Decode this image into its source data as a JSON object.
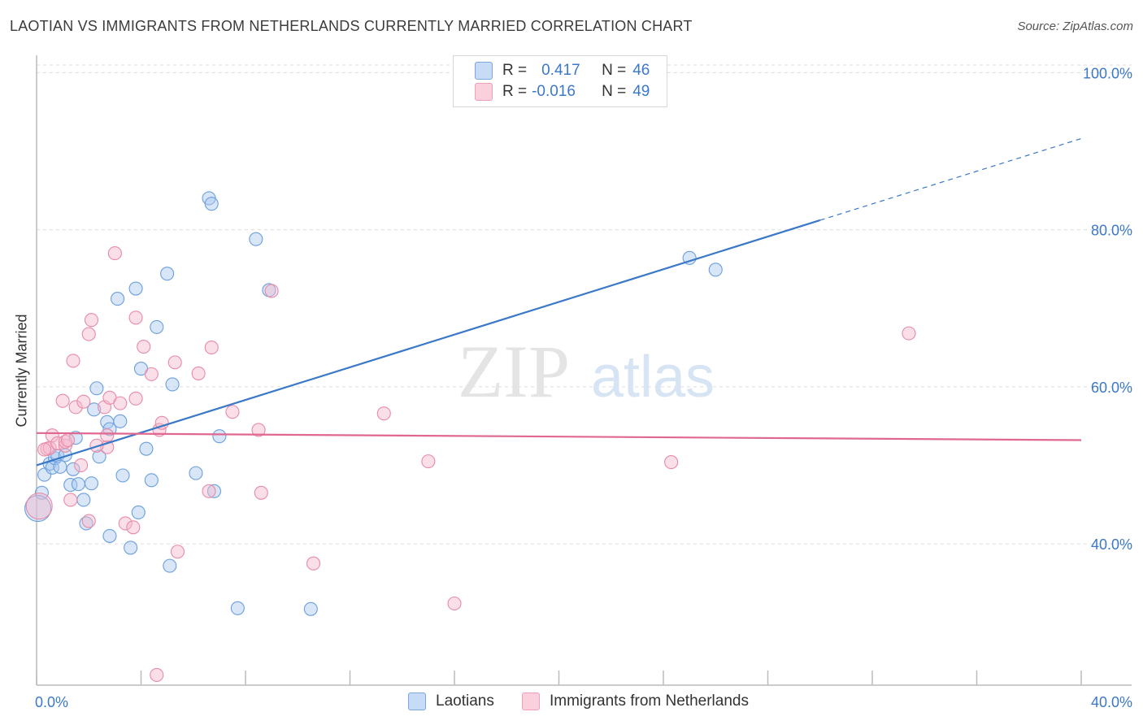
{
  "header": {
    "title": "LAOTIAN VS IMMIGRANTS FROM NETHERLANDS CURRENTLY MARRIED CORRELATION CHART",
    "source": "Source: ZipAtlas.com"
  },
  "watermark": {
    "zip": "ZIP",
    "atlas": "atlas"
  },
  "stats": [
    {
      "r_label": "R =",
      "r_value": "0.417",
      "n_label": "N =",
      "n_value": "46",
      "color": "#a9c8f0"
    },
    {
      "r_label": "R =",
      "r_value": "-0.016",
      "n_label": "N =",
      "n_value": "49",
      "color": "#f5b8cb"
    }
  ],
  "legend": {
    "items": [
      {
        "label": "Laotians",
        "color": "#a9c8f0"
      },
      {
        "label": "Immigrants from Netherlands",
        "color": "#f5b8cb"
      }
    ]
  },
  "chart_data": {
    "type": "scatter",
    "title": "LAOTIAN VS IMMIGRANTS FROM NETHERLANDS CURRENTLY MARRIED CORRELATION CHART",
    "xlabel": "",
    "ylabel": "Currently Married",
    "xlim": [
      0,
      40
    ],
    "ylim": [
      22,
      102
    ],
    "x_tick_labels": [
      {
        "value": 0,
        "label": "0.0%"
      },
      {
        "value": 40,
        "label": "40.0%"
      }
    ],
    "y_tick_labels": [
      {
        "value": 100,
        "label": "100.0%"
      },
      {
        "value": 80,
        "label": "80.0%"
      },
      {
        "value": 60,
        "label": "60.0%"
      },
      {
        "value": 40,
        "label": "40.0%"
      }
    ],
    "y_grid": [
      100,
      80,
      60,
      40
    ],
    "x_ticks": [
      0,
      4,
      8,
      12,
      16,
      20,
      24,
      28,
      32,
      36,
      40
    ],
    "grid": true,
    "series": [
      {
        "name": "Laotians",
        "color": "#6a9fdc",
        "fill": "#a9c8f0",
        "trend": {
          "x0": 0,
          "y0": 50.0,
          "x1": 30.0,
          "y1": 81.2,
          "dash_to_x": 40,
          "dash_to_y": 91.6,
          "color": "#3a78c8"
        },
        "points": [
          [
            0.2,
            46.5
          ],
          [
            0.3,
            48.8
          ],
          [
            0.5,
            50.2
          ],
          [
            0.6,
            49.7
          ],
          [
            0.7,
            50.9
          ],
          [
            0.8,
            51.2
          ],
          [
            0.9,
            49.8
          ],
          [
            1.1,
            51.3
          ],
          [
            1.3,
            47.5
          ],
          [
            1.4,
            49.5
          ],
          [
            1.5,
            53.5
          ],
          [
            1.6,
            47.6
          ],
          [
            1.8,
            45.6
          ],
          [
            1.9,
            42.6
          ],
          [
            2.1,
            47.7
          ],
          [
            2.2,
            57.1
          ],
          [
            2.3,
            59.8
          ],
          [
            2.4,
            51.1
          ],
          [
            2.7,
            55.5
          ],
          [
            2.8,
            54.6
          ],
          [
            2.8,
            41.0
          ],
          [
            3.1,
            71.2
          ],
          [
            3.2,
            55.6
          ],
          [
            3.3,
            48.7
          ],
          [
            3.6,
            39.5
          ],
          [
            3.8,
            72.5
          ],
          [
            3.9,
            44.0
          ],
          [
            4.0,
            62.3
          ],
          [
            4.2,
            52.1
          ],
          [
            4.4,
            48.1
          ],
          [
            4.6,
            67.6
          ],
          [
            5.0,
            74.4
          ],
          [
            5.1,
            37.2
          ],
          [
            5.2,
            60.3
          ],
          [
            6.1,
            49.0
          ],
          [
            6.6,
            84.0
          ],
          [
            6.7,
            83.3
          ],
          [
            6.8,
            46.7
          ],
          [
            7.0,
            53.7
          ],
          [
            7.7,
            31.8
          ],
          [
            8.4,
            78.8
          ],
          [
            8.9,
            72.3
          ],
          [
            10.5,
            31.7
          ],
          [
            25.0,
            76.4
          ],
          [
            26.0,
            74.9
          ],
          [
            0.05,
            44.5
          ]
        ]
      },
      {
        "name": "Immigrants from Netherlands",
        "color": "#e88aa8",
        "fill": "#f5b8cb",
        "trend": {
          "x0": 0,
          "y0": 54.1,
          "x1": 40,
          "y1": 53.2,
          "color": "#e06890"
        },
        "points": [
          [
            0.1,
            44.8
          ],
          [
            0.4,
            52.1
          ],
          [
            0.5,
            52.2
          ],
          [
            0.6,
            53.8
          ],
          [
            0.8,
            52.8
          ],
          [
            1.0,
            58.2
          ],
          [
            1.1,
            52.5
          ],
          [
            1.1,
            53.0
          ],
          [
            1.3,
            45.6
          ],
          [
            1.4,
            63.3
          ],
          [
            1.5,
            57.4
          ],
          [
            1.7,
            50.0
          ],
          [
            1.8,
            58.1
          ],
          [
            2.0,
            42.9
          ],
          [
            2.0,
            66.7
          ],
          [
            2.1,
            68.5
          ],
          [
            2.6,
            57.4
          ],
          [
            2.7,
            52.3
          ],
          [
            2.7,
            53.8
          ],
          [
            2.8,
            58.6
          ],
          [
            3.0,
            77.0
          ],
          [
            3.2,
            57.9
          ],
          [
            3.4,
            42.6
          ],
          [
            3.7,
            42.1
          ],
          [
            3.8,
            68.8
          ],
          [
            3.8,
            58.5
          ],
          [
            4.1,
            65.1
          ],
          [
            4.4,
            61.6
          ],
          [
            4.7,
            54.5
          ],
          [
            4.8,
            55.4
          ],
          [
            5.3,
            63.1
          ],
          [
            5.4,
            39.0
          ],
          [
            6.2,
            61.7
          ],
          [
            6.6,
            46.7
          ],
          [
            6.7,
            65.0
          ],
          [
            7.5,
            56.8
          ],
          [
            8.5,
            54.5
          ],
          [
            8.6,
            46.5
          ],
          [
            9.0,
            72.2
          ],
          [
            10.6,
            37.5
          ],
          [
            13.3,
            56.6
          ],
          [
            15.0,
            50.5
          ],
          [
            16.0,
            32.4
          ],
          [
            24.3,
            50.4
          ],
          [
            33.4,
            66.8
          ],
          [
            4.6,
            23.3
          ],
          [
            2.3,
            52.5
          ],
          [
            1.2,
            53.2
          ],
          [
            0.3,
            52.0
          ]
        ]
      }
    ]
  }
}
